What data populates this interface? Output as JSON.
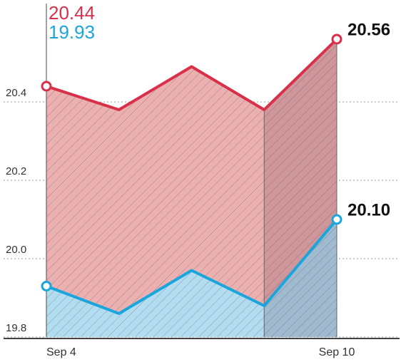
{
  "chart_data": {
    "type": "line",
    "categories": [
      "Sep 4",
      null,
      null,
      null,
      "Sep 10"
    ],
    "series": [
      {
        "name": null,
        "color": "#d9304a",
        "fill": "#ebb0b0",
        "values": [
          20.44,
          20.38,
          20.49,
          20.38,
          20.56
        ],
        "value_labels": [
          "20.44",
          null,
          null,
          null,
          "20.56"
        ]
      },
      {
        "name": null,
        "color": "#1aa6dc",
        "fill": "#b2dcf0",
        "values": [
          19.93,
          19.86,
          19.97,
          19.88,
          20.1
        ],
        "value_labels": [
          "19.93",
          null,
          null,
          null,
          "20.10"
        ]
      }
    ],
    "ylim": [
      19.8,
      20.66
    ],
    "yticks": [
      19.8,
      {
        "value": 20,
        "label": "20.0"
      },
      20.2,
      20.4
    ],
    "grid": true
  }
}
